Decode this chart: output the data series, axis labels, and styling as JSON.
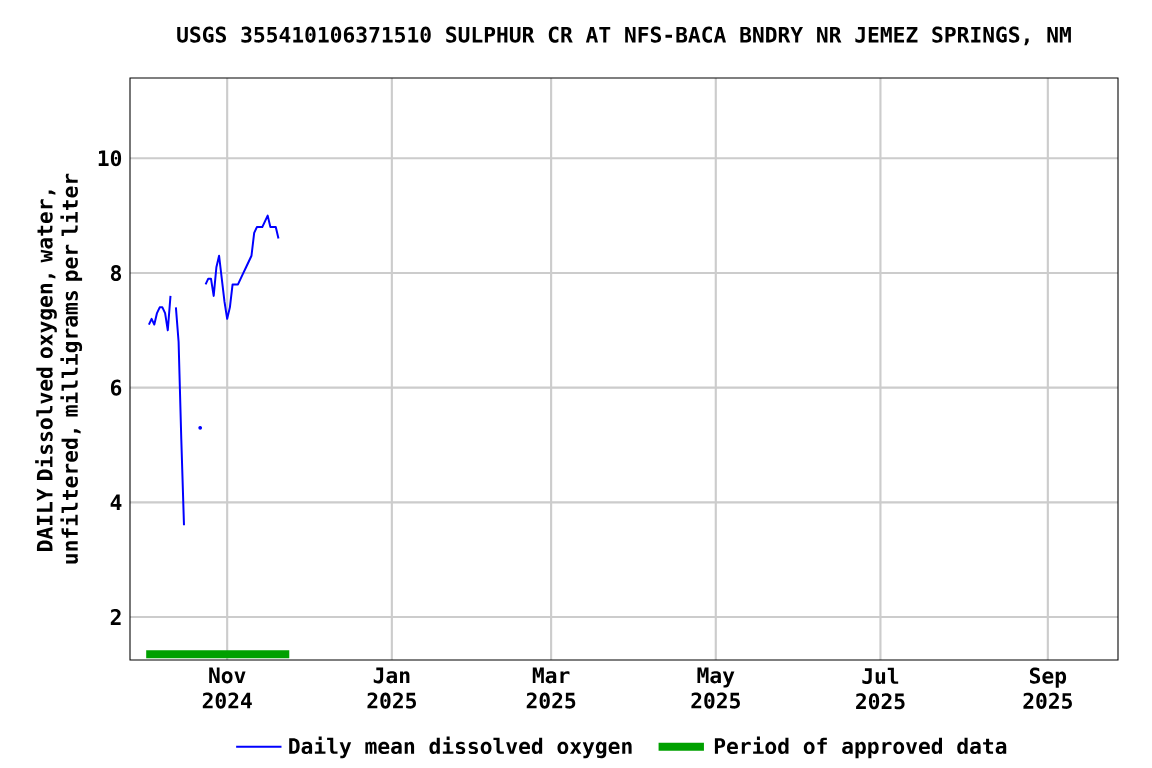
{
  "chart_data": {
    "type": "line",
    "title": "USGS 355410106371510 SULPHUR CR AT NFS-BACA BNDRY NR JEMEZ SPRINGS, NM",
    "ylabel": "DAILY Dissolved oxygen, water, unfiltered, milligrams per liter",
    "x": [
      "2024-10-03",
      "2024-10-04",
      "2024-10-05",
      "2024-10-06",
      "2024-10-07",
      "2024-10-08",
      "2024-10-09",
      "2024-10-10",
      "2024-10-11",
      "2024-10-12",
      "2024-10-13",
      "2024-10-14",
      "2024-10-15",
      "2024-10-16",
      "2024-10-17",
      "2024-10-18",
      "2024-10-19",
      "2024-10-20",
      "2024-10-21",
      "2024-10-22",
      "2024-10-23",
      "2024-10-24",
      "2024-10-25",
      "2024-10-26",
      "2024-10-27",
      "2024-10-28",
      "2024-10-29",
      "2024-10-30",
      "2024-10-31",
      "2024-11-01",
      "2024-11-02",
      "2024-11-03",
      "2024-11-04",
      "2024-11-05",
      "2024-11-06",
      "2024-11-07",
      "2024-11-08",
      "2024-11-09",
      "2024-11-10",
      "2024-11-11",
      "2024-11-12",
      "2024-11-13",
      "2024-11-14",
      "2024-11-15",
      "2024-11-16",
      "2024-11-17",
      "2024-11-18",
      "2024-11-19",
      "2024-11-20"
    ],
    "series": [
      {
        "name": "Daily mean dissolved oxygen",
        "color": "#0000ff",
        "values": [
          7.1,
          7.2,
          7.1,
          7.3,
          7.4,
          7.4,
          7.3,
          7.0,
          7.6,
          null,
          7.4,
          6.8,
          5.1,
          3.6,
          null,
          null,
          null,
          null,
          null,
          5.3,
          null,
          7.8,
          7.9,
          7.9,
          7.6,
          8.1,
          8.3,
          7.9,
          7.5,
          7.2,
          7.4,
          7.8,
          7.8,
          7.8,
          7.9,
          8.0,
          8.1,
          8.2,
          8.3,
          8.7,
          8.8,
          8.8,
          8.8,
          8.9,
          9.0,
          8.8,
          8.8,
          8.8,
          8.6
        ]
      },
      {
        "name": "Period of approved data",
        "color": "#00a000",
        "x": [
          "2024-10-02",
          "2024-11-24"
        ],
        "values": [
          1.35,
          1.35
        ]
      }
    ],
    "xlim": [
      "2024-09-26",
      "2025-09-27"
    ],
    "xticks": [
      {
        "value": "2024-11-01",
        "label": "Nov 2024"
      },
      {
        "value": "2025-01-01",
        "label": "Jan 2025"
      },
      {
        "value": "2025-03-01",
        "label": "Mar 2025"
      },
      {
        "value": "2025-05-01",
        "label": "May 2025"
      },
      {
        "value": "2025-07-01",
        "label": "Jul 2025"
      },
      {
        "value": "2025-09-01",
        "label": "Sep 2025"
      }
    ],
    "ylim": [
      1.25,
      11.4
    ],
    "yticks": [
      2,
      4,
      6,
      8,
      10
    ],
    "grid": true,
    "legend": "bottom"
  }
}
